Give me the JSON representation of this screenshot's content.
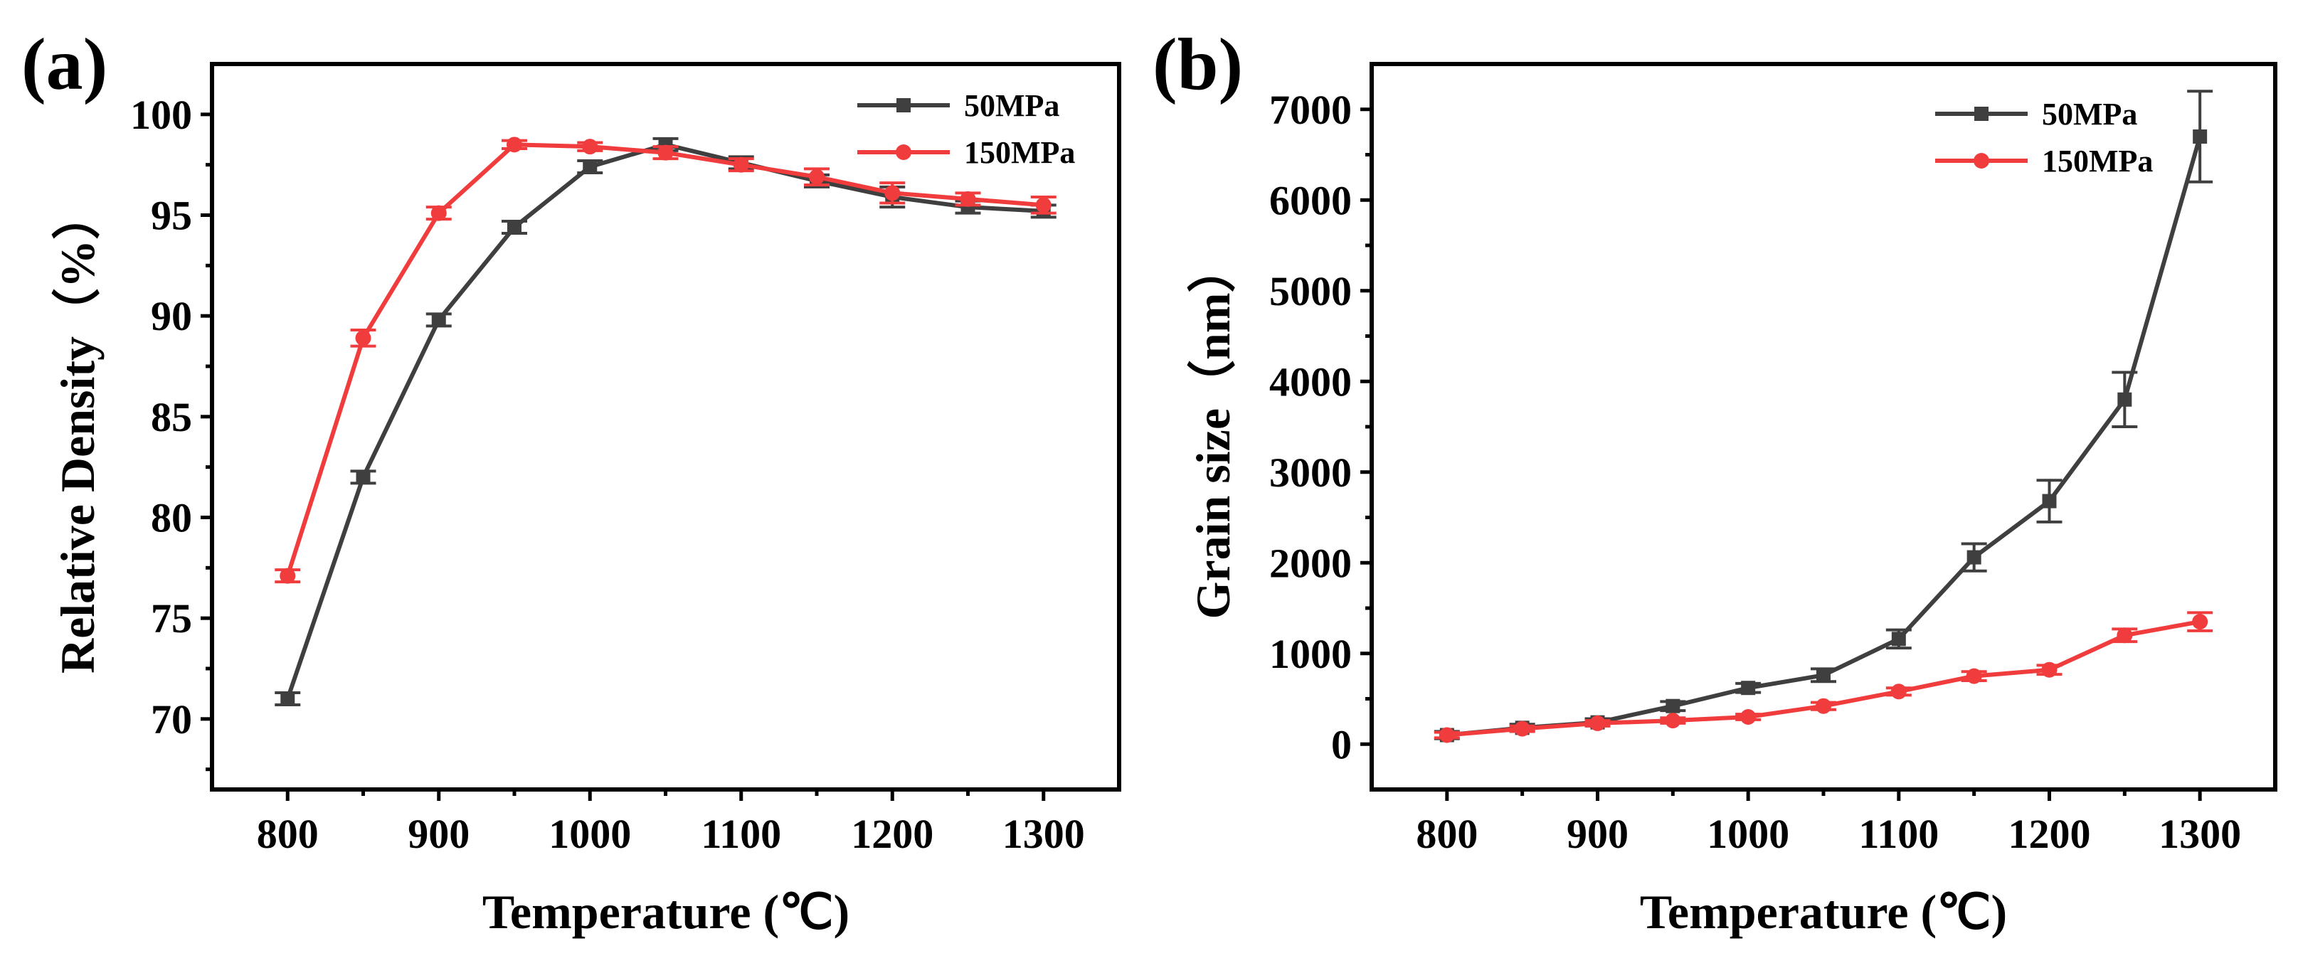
{
  "colors": {
    "s50": "#3f3f3f",
    "s150": "#f03c3c"
  },
  "chart_data": [
    {
      "type": "line",
      "panel_label": "(a)",
      "xlabel": "Temperature (℃)",
      "ylabel": "Relative Density（%）",
      "xlim": [
        750,
        1350
      ],
      "ylim": [
        66.5,
        102.5
      ],
      "xticks": [
        800,
        900,
        1000,
        1100,
        1200,
        1300
      ],
      "yticks": [
        70,
        75,
        80,
        85,
        90,
        95,
        100
      ],
      "legend_position": "top-right",
      "x": [
        800,
        850,
        900,
        950,
        1000,
        1050,
        1100,
        1150,
        1200,
        1250,
        1300
      ],
      "series": [
        {
          "name": "50MPa",
          "marker": "square",
          "color": "#3f3f3f",
          "values": [
            71.0,
            82.0,
            89.8,
            94.4,
            97.4,
            98.5,
            97.6,
            96.7,
            95.9,
            95.4,
            95.2
          ],
          "errors": [
            0.3,
            0.3,
            0.3,
            0.3,
            0.3,
            0.3,
            0.3,
            0.3,
            0.5,
            0.3,
            0.3
          ]
        },
        {
          "name": "150MPa",
          "marker": "circle",
          "color": "#f03c3c",
          "values": [
            77.1,
            88.9,
            95.1,
            98.5,
            98.4,
            98.1,
            97.5,
            96.9,
            96.1,
            95.8,
            95.5
          ],
          "errors": [
            0.3,
            0.4,
            0.3,
            0.2,
            0.2,
            0.3,
            0.3,
            0.4,
            0.5,
            0.3,
            0.4
          ]
        }
      ]
    },
    {
      "type": "line",
      "panel_label": "(b)",
      "xlabel": "Temperature (℃)",
      "ylabel": "Grain size（nm）",
      "xlim": [
        750,
        1350
      ],
      "ylim": [
        -500,
        7500
      ],
      "xticks": [
        800,
        900,
        1000,
        1100,
        1200,
        1300
      ],
      "yticks": [
        0,
        1000,
        2000,
        3000,
        4000,
        5000,
        6000,
        7000
      ],
      "legend_position": "top-left",
      "x": [
        800,
        850,
        900,
        950,
        1000,
        1050,
        1100,
        1150,
        1200,
        1250,
        1300
      ],
      "series": [
        {
          "name": "50MPa",
          "marker": "square",
          "color": "#3f3f3f",
          "values": [
            100,
            180,
            240,
            420,
            620,
            760,
            1160,
            2060,
            2680,
            3800,
            6700
          ],
          "errors": [
            40,
            40,
            40,
            50,
            50,
            70,
            100,
            150,
            230,
            300,
            500
          ]
        },
        {
          "name": "150MPa",
          "marker": "circle",
          "color": "#f03c3c",
          "values": [
            100,
            170,
            230,
            260,
            300,
            420,
            580,
            750,
            820,
            1200,
            1350
          ],
          "errors": [
            30,
            30,
            30,
            30,
            30,
            40,
            40,
            50,
            50,
            70,
            100
          ]
        }
      ]
    }
  ]
}
